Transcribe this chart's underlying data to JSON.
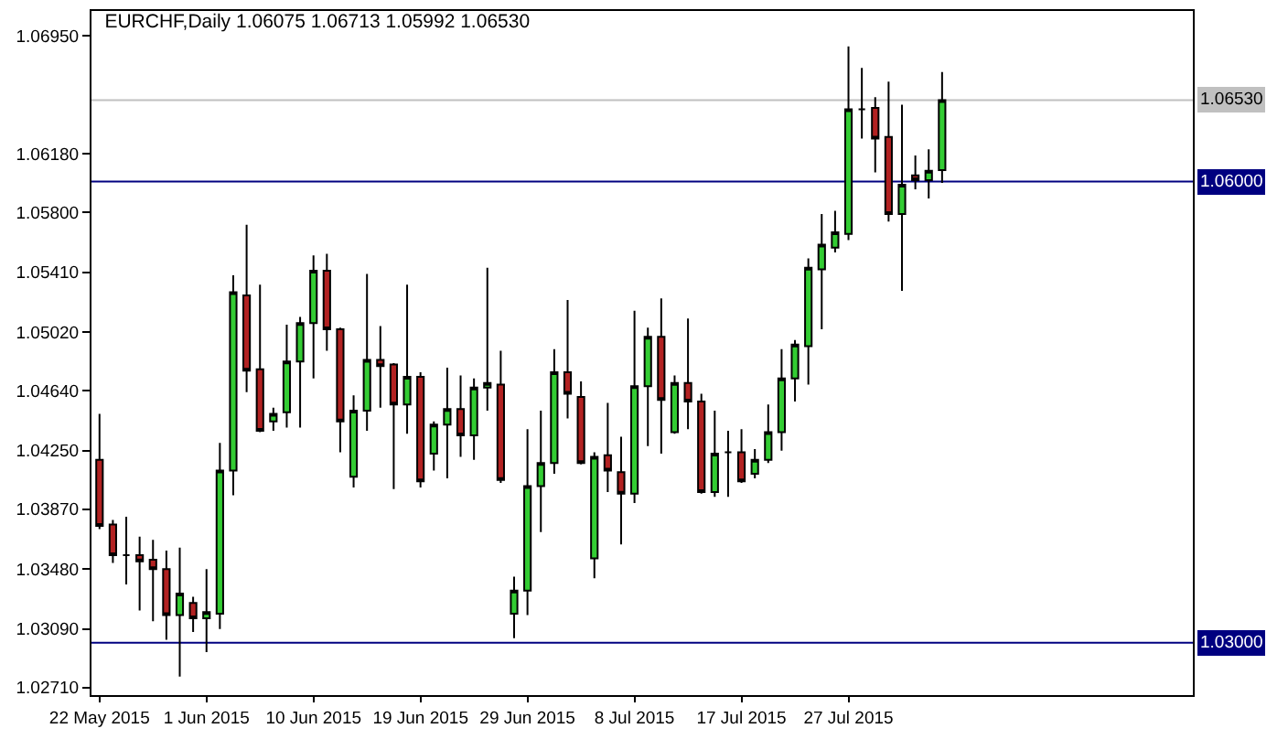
{
  "chart_data": {
    "type": "candlestick",
    "title": "EURCHF,Daily 1.06075 1.06713 1.05992 1.06530",
    "categories": [
      "22 May 2015",
      null,
      null,
      null,
      null,
      null,
      null,
      null,
      "1 Jun 2015",
      null,
      null,
      null,
      null,
      null,
      null,
      null,
      "10 Jun 2015",
      null,
      null,
      null,
      null,
      null,
      null,
      null,
      "19 Jun 2015",
      null,
      null,
      null,
      null,
      null,
      null,
      null,
      "29 Jun 2015",
      null,
      null,
      null,
      null,
      null,
      null,
      null,
      "8 Jul 2015",
      null,
      null,
      null,
      null,
      null,
      null,
      null,
      "17 Jul 2015",
      null,
      null,
      null,
      null,
      null,
      null,
      null,
      "27 Jul 2015",
      null,
      null,
      null,
      null,
      null,
      null,
      null
    ],
    "ohlc": [
      [
        1.0419,
        1.0449,
        1.0374,
        1.0376
      ],
      [
        1.0377,
        1.038,
        1.0352,
        1.0357
      ],
      [
        1.0357,
        1.0382,
        1.0338,
        1.0357
      ],
      [
        1.0357,
        1.0369,
        1.0321,
        1.0353
      ],
      [
        1.0354,
        1.0367,
        1.0314,
        1.0348
      ],
      [
        1.0348,
        1.036,
        1.0302,
        1.0318
      ],
      [
        1.0318,
        1.0362,
        1.0278,
        1.0332
      ],
      [
        1.0326,
        1.033,
        1.0307,
        1.0316
      ],
      [
        1.0316,
        1.0348,
        1.0294,
        1.032
      ],
      [
        1.0319,
        1.043,
        1.0309,
        1.0412
      ],
      [
        1.0412,
        1.0539,
        1.0396,
        1.0528
      ],
      [
        1.0526,
        1.0572,
        1.0463,
        1.0477
      ],
      [
        1.0478,
        1.0533,
        1.0437,
        1.0438
      ],
      [
        1.0444,
        1.0453,
        1.0438,
        1.0449
      ],
      [
        1.045,
        1.0507,
        1.044,
        1.0483
      ],
      [
        1.0483,
        1.0512,
        1.044,
        1.0508
      ],
      [
        1.0508,
        1.0552,
        1.0472,
        1.0542
      ],
      [
        1.0542,
        1.0553,
        1.049,
        1.0504
      ],
      [
        1.0504,
        1.0505,
        1.0424,
        1.0444
      ],
      [
        1.0408,
        1.0461,
        1.0401,
        1.0451
      ],
      [
        1.0451,
        1.054,
        1.0438,
        1.0484
      ],
      [
        1.0484,
        1.0506,
        1.0453,
        1.048
      ],
      [
        1.0481,
        1.0482,
        1.04,
        1.0455
      ],
      [
        1.0455,
        1.0533,
        1.0436,
        1.0473
      ],
      [
        1.0473,
        1.0476,
        1.0401,
        1.0405
      ],
      [
        1.0423,
        1.0444,
        1.0412,
        1.0442
      ],
      [
        1.0442,
        1.0479,
        1.0407,
        1.0452
      ],
      [
        1.0452,
        1.0474,
        1.0421,
        1.0435
      ],
      [
        1.0435,
        1.0472,
        1.0419,
        1.0466
      ],
      [
        1.0466,
        1.0544,
        1.0451,
        1.0469
      ],
      [
        1.0468,
        1.049,
        1.0404,
        1.0406
      ],
      [
        1.0319,
        1.0343,
        1.0303,
        1.0334
      ],
      [
        1.0334,
        1.0439,
        1.0318,
        1.0402
      ],
      [
        1.0402,
        1.0451,
        1.0372,
        1.0417
      ],
      [
        1.0417,
        1.0491,
        1.041,
        1.0476
      ],
      [
        1.0476,
        1.0523,
        1.0446,
        1.0462
      ],
      [
        1.046,
        1.047,
        1.0416,
        1.0417
      ],
      [
        1.0355,
        1.0424,
        1.0342,
        1.0421
      ],
      [
        1.0422,
        1.0456,
        1.0398,
        1.0412
      ],
      [
        1.0411,
        1.0434,
        1.0364,
        1.0397
      ],
      [
        1.0397,
        1.0516,
        1.0391,
        1.0467
      ],
      [
        1.0467,
        1.0505,
        1.0428,
        1.0499
      ],
      [
        1.0499,
        1.0524,
        1.0423,
        1.0458
      ],
      [
        1.0437,
        1.0474,
        1.0436,
        1.0469
      ],
      [
        1.0469,
        1.0511,
        1.0439,
        1.0457
      ],
      [
        1.0457,
        1.0462,
        1.0397,
        1.0398
      ],
      [
        1.0398,
        1.0451,
        1.0395,
        1.0423
      ],
      [
        1.0424,
        1.0438,
        1.0395,
        1.0424
      ],
      [
        1.0424,
        1.0439,
        1.0404,
        1.0405
      ],
      [
        1.041,
        1.0426,
        1.0407,
        1.0419
      ],
      [
        1.0419,
        1.0455,
        1.0417,
        1.0437
      ],
      [
        1.0437,
        1.0491,
        1.0425,
        1.0472
      ],
      [
        1.0472,
        1.0497,
        1.0457,
        1.0494
      ],
      [
        1.0493,
        1.055,
        1.0468,
        1.0544
      ],
      [
        1.0543,
        1.0579,
        1.0504,
        1.0559
      ],
      [
        1.0557,
        1.0581,
        1.0554,
        1.0567
      ],
      [
        1.0566,
        1.0688,
        1.0562,
        1.0647
      ],
      [
        1.0647,
        1.0674,
        1.0628,
        1.0647
      ],
      [
        1.0648,
        1.0655,
        1.0606,
        1.0628
      ],
      [
        1.0629,
        1.0665,
        1.0574,
        1.0579
      ],
      [
        1.0579,
        1.065,
        1.0529,
        1.0598
      ],
      [
        1.0604,
        1.0617,
        1.0595,
        1.0601
      ],
      [
        1.0601,
        1.0621,
        1.0589,
        1.0607
      ],
      [
        1.06075,
        1.06713,
        1.05992,
        1.0653
      ]
    ],
    "colors": [
      "#b22222",
      "#b22222",
      "#000000",
      "#b22222",
      "#b22222",
      "#b22222",
      "#33cc33",
      "#b22222",
      "#33cc33",
      "#33cc33",
      "#33cc33",
      "#b22222",
      "#b22222",
      "#33cc33",
      "#33cc33",
      "#33cc33",
      "#33cc33",
      "#b22222",
      "#b22222",
      "#33cc33",
      "#33cc33",
      "#b22222",
      "#b22222",
      "#33cc33",
      "#b22222",
      "#33cc33",
      "#33cc33",
      "#b22222",
      "#33cc33",
      "#33cc33",
      "#b22222",
      "#33cc33",
      "#33cc33",
      "#33cc33",
      "#33cc33",
      "#b22222",
      "#b22222",
      "#33cc33",
      "#b22222",
      "#b22222",
      "#33cc33",
      "#33cc33",
      "#b22222",
      "#33cc33",
      "#b22222",
      "#b22222",
      "#33cc33",
      "#000000",
      "#b22222",
      "#33cc33",
      "#33cc33",
      "#33cc33",
      "#33cc33",
      "#33cc33",
      "#33cc33",
      "#33cc33",
      "#33cc33",
      "#000000",
      "#b22222",
      "#b22222",
      "#33cc33",
      "#b22222",
      "#33cc33",
      "#33cc33"
    ],
    "ylim": [
      1.0266,
      1.0711
    ],
    "yticks": [
      {
        "value": 1.0271,
        "label": "1.02710"
      },
      {
        "value": 1.0309,
        "label": "1.03090"
      },
      {
        "value": 1.0348,
        "label": "1.03480"
      },
      {
        "value": 1.0387,
        "label": "1.03870"
      },
      {
        "value": 1.0425,
        "label": "1.04250"
      },
      {
        "value": 1.0464,
        "label": "1.04640"
      },
      {
        "value": 1.0502,
        "label": "1.05020"
      },
      {
        "value": 1.0541,
        "label": "1.05410"
      },
      {
        "value": 1.058,
        "label": "1.05800"
      },
      {
        "value": 1.0618,
        "label": "1.06180"
      },
      {
        "value": 1.0695,
        "label": "1.06950"
      }
    ],
    "ref_lines": [
      {
        "axis": "y",
        "value": 1.0653,
        "label": "1.06530",
        "color": "#c0c0c0"
      },
      {
        "axis": "y",
        "value": 1.06,
        "label": "1.06000",
        "color": "#000080"
      },
      {
        "axis": "y",
        "value": 1.03,
        "label": "1.03000",
        "color": "#000080"
      }
    ]
  }
}
